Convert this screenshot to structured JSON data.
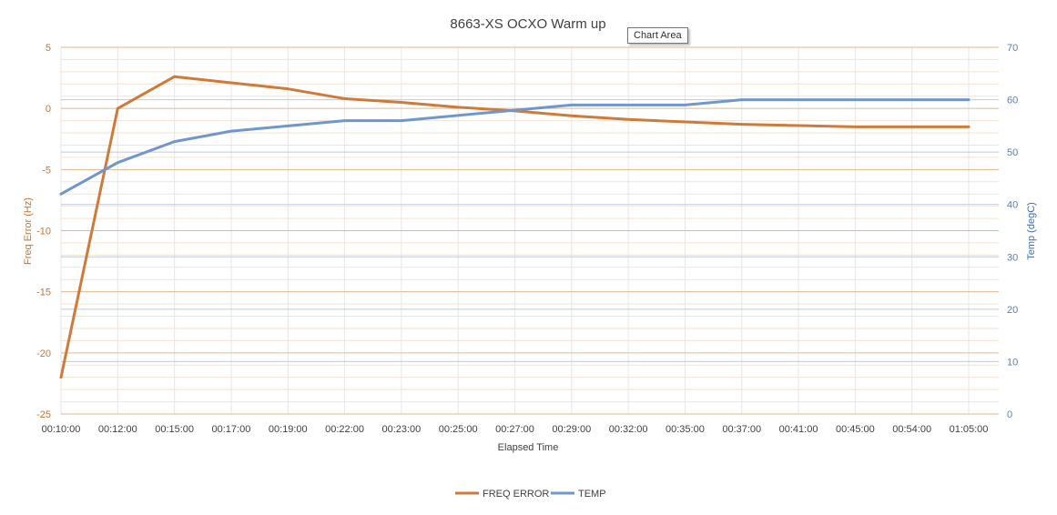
{
  "chart_data": {
    "type": "line",
    "title": "8663-XS OCXO Warm up",
    "xlabel": "Elapsed Time",
    "ylabel": "Freq Error (Hz)",
    "y2label": "Temp (degC)",
    "categories": [
      "00:10:00",
      "00:12:00",
      "00:15:00",
      "00:17:00",
      "00:19:00",
      "00:22:00",
      "00:23:00",
      "00:25:00",
      "00:27:00",
      "00:29:00",
      "00:32:00",
      "00:35:00",
      "00:37:00",
      "00:41:00",
      "00:45:00",
      "00:54:00",
      "01:05:00"
    ],
    "ylim": [
      -25,
      5
    ],
    "y2lim": [
      0,
      70
    ],
    "yticks": [
      "5",
      "0",
      "-5",
      "-10",
      "-15",
      "-20",
      "-25"
    ],
    "y2ticks": [
      "70",
      "60",
      "50",
      "40",
      "30",
      "20",
      "10",
      "0"
    ],
    "series": [
      {
        "name": "FREQ ERROR",
        "axis": "left",
        "color": "#d07a3a",
        "values": [
          -22.0,
          0.0,
          2.6,
          2.1,
          1.6,
          0.8,
          0.5,
          0.1,
          -0.2,
          -0.6,
          -0.9,
          -1.1,
          -1.3,
          -1.4,
          -1.5,
          -1.5,
          -1.5
        ]
      },
      {
        "name": "TEMP",
        "axis": "right",
        "color": "#6f97cc",
        "values": [
          42,
          48,
          52,
          54,
          55,
          56,
          56,
          57,
          58,
          59,
          59,
          59,
          60,
          60,
          60,
          60,
          60
        ]
      }
    ],
    "legend_position": "bottom",
    "grid": true
  },
  "tooltip": {
    "text": "Chart Area"
  },
  "colors": {
    "left_grid": "#e2b98e",
    "left_minor_grid": "#f3e3d2",
    "right_grid": "#b9c9e6",
    "x_grid": "#e6e6e6"
  }
}
